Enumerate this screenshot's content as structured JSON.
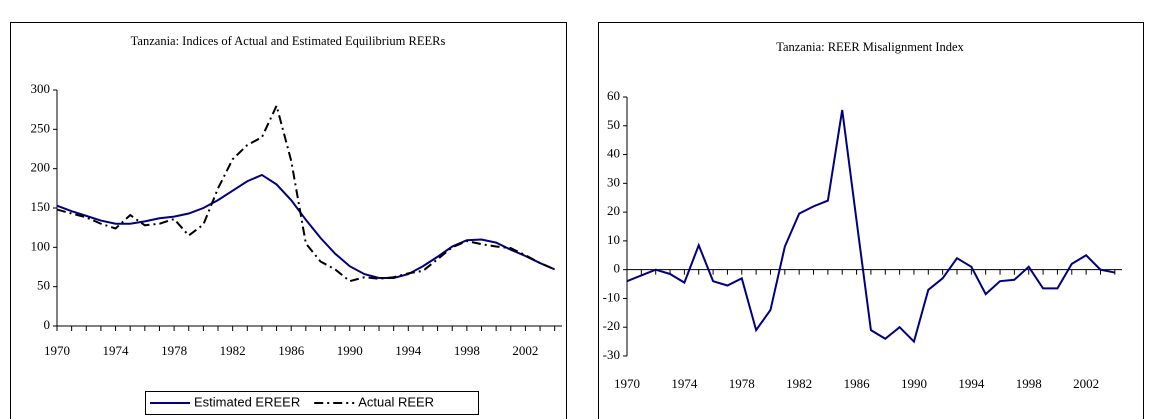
{
  "chart_data": [
    {
      "type": "line",
      "title": "Tanzania: Indices of Actual and Estimated Equilibrium REERs",
      "x": [
        1970,
        1971,
        1972,
        1973,
        1974,
        1975,
        1976,
        1977,
        1978,
        1979,
        1980,
        1981,
        1982,
        1983,
        1984,
        1985,
        1986,
        1987,
        1988,
        1989,
        1990,
        1991,
        1992,
        1993,
        1994,
        1995,
        1996,
        1997,
        1998,
        1999,
        2000,
        2001,
        2002,
        2003,
        2004
      ],
      "xlim": [
        1970,
        2004.5
      ],
      "xticks": [
        1970,
        1974,
        1978,
        1982,
        1986,
        1990,
        1994,
        1998,
        2002
      ],
      "ylim": [
        0,
        300
      ],
      "yticks": [
        0,
        50,
        100,
        150,
        200,
        250,
        300
      ],
      "grid": false,
      "legend": "bottom",
      "series": [
        {
          "name": "Estimated EREER",
          "color": "#000080",
          "style": "solid",
          "values": [
            153,
            146,
            140,
            134,
            130,
            130,
            133,
            137,
            139,
            143,
            150,
            160,
            172,
            184,
            192,
            180,
            160,
            135,
            112,
            92,
            76,
            66,
            61,
            61,
            66,
            76,
            88,
            101,
            109,
            110,
            106,
            97,
            89,
            80,
            72
          ]
        },
        {
          "name": "Actual REER",
          "color": "#000000",
          "style": "dashdot",
          "values": [
            148,
            143,
            138,
            130,
            124,
            141,
            128,
            130,
            136,
            115,
            129,
            175,
            212,
            230,
            240,
            280,
            210,
            105,
            82,
            72,
            57,
            62,
            60,
            62,
            67,
            70,
            85,
            100,
            108,
            104,
            101,
            99,
            90,
            80,
            72
          ]
        }
      ]
    },
    {
      "type": "line",
      "title": "Tanzania: REER Misalignment Index",
      "x": [
        1970,
        1971,
        1972,
        1973,
        1974,
        1975,
        1976,
        1977,
        1978,
        1979,
        1980,
        1981,
        1982,
        1983,
        1984,
        1985,
        1986,
        1987,
        1988,
        1989,
        1990,
        1991,
        1992,
        1993,
        1994,
        1995,
        1996,
        1997,
        1998,
        1999,
        2000,
        2001,
        2002,
        2003,
        2004
      ],
      "xlim": [
        1970,
        2004.5
      ],
      "xticks": [
        1970,
        1974,
        1978,
        1982,
        1986,
        1990,
        1994,
        1998,
        2002
      ],
      "ylim": [
        -30,
        60
      ],
      "yticks": [
        -30,
        -20,
        -10,
        0,
        10,
        20,
        30,
        40,
        50,
        60
      ],
      "grid": false,
      "series": [
        {
          "color": "#000080",
          "style": "solid",
          "values": [
            -4,
            -2,
            0,
            -1.5,
            -4.5,
            8.5,
            -4,
            -5.5,
            -3,
            -21,
            -14,
            8,
            19.5,
            22,
            24,
            55.5,
            17,
            -21,
            -24,
            -20,
            -25,
            -7,
            -3,
            4,
            1,
            -8.5,
            -4,
            -3.5,
            1,
            -6.5,
            -6.5,
            2,
            5,
            0,
            -1
          ]
        }
      ]
    }
  ]
}
